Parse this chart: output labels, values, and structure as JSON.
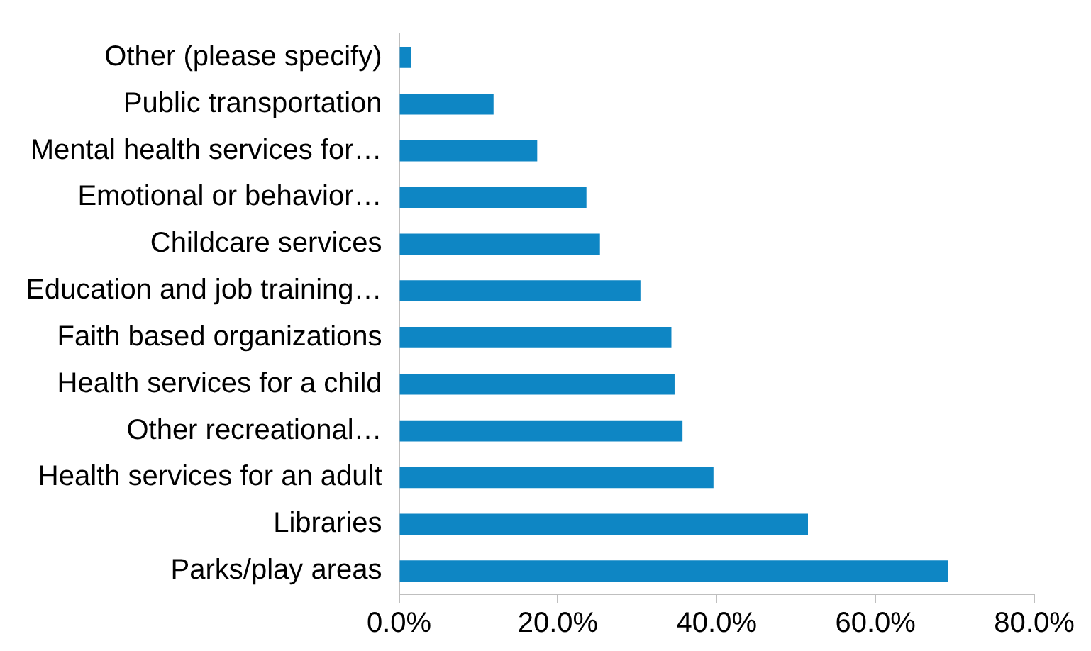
{
  "chart_data": {
    "type": "bar",
    "orientation": "horizontal",
    "categories": [
      "Other (please specify)",
      "Public transportation",
      "Mental health services for…",
      "Emotional or behavior…",
      "Childcare services",
      "Education and job training…",
      "Faith based organizations",
      "Health services for a child",
      "Other recreational…",
      "Health services for an adult",
      "Libraries",
      "Parks/play areas"
    ],
    "values": [
      1.5,
      11.9,
      17.4,
      23.6,
      25.3,
      30.4,
      34.3,
      34.7,
      35.7,
      39.6,
      51.5,
      69.1
    ],
    "color": "#0e86c4",
    "xlim": [
      0,
      80
    ],
    "xticks": [
      {
        "value": 0,
        "label": "0.0%"
      },
      {
        "value": 20,
        "label": "20.0%"
      },
      {
        "value": 40,
        "label": "40.0%"
      },
      {
        "value": 60,
        "label": "60.0%"
      },
      {
        "value": 80,
        "label": "80.0%"
      }
    ],
    "grid": false,
    "legend": false
  }
}
